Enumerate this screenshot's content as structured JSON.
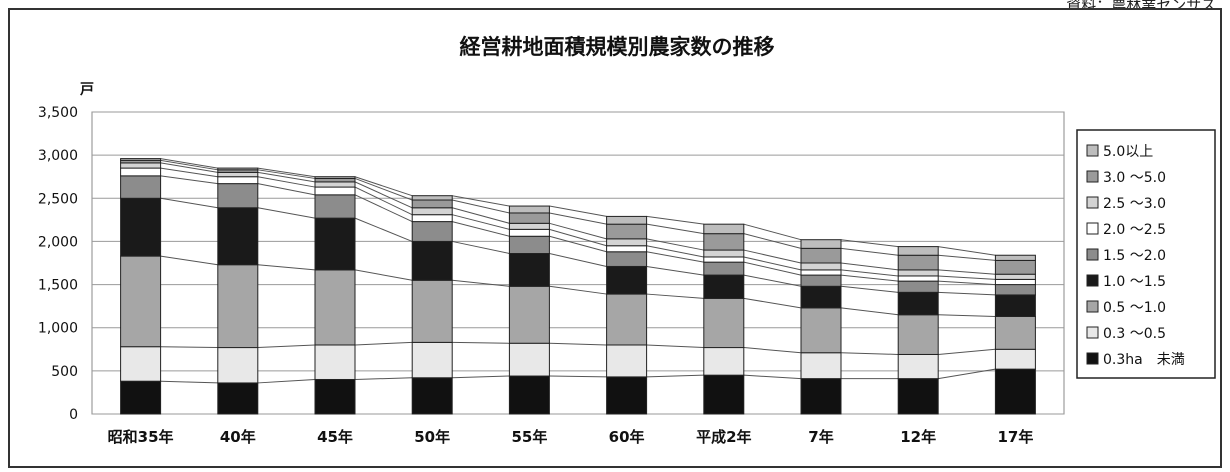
{
  "source_note": "資料：農林業センサス",
  "chart_data": {
    "type": "bar",
    "stacked": true,
    "title": "経営耕地面積規模別農家数の推移",
    "y_unit_label": "戸",
    "ylim": [
      0,
      3500
    ],
    "yticks": [
      0,
      500,
      1000,
      1500,
      2000,
      2500,
      3000,
      3500
    ],
    "ytick_labels": [
      "0",
      "500",
      "1,000",
      "1,500",
      "2,000",
      "2,500",
      "3,000",
      "3,500"
    ],
    "grid": true,
    "legend_position": "right",
    "categories": [
      "昭和35年",
      "40年",
      "45年",
      "50年",
      "55年",
      "60年",
      "平成2年",
      "7年",
      "12年",
      "17年"
    ],
    "series": [
      {
        "name": "0.3ha　未満",
        "color": "#111111",
        "values": [
          380,
          360,
          400,
          420,
          440,
          430,
          450,
          410,
          410,
          520
        ]
      },
      {
        "name": "0.3 ～0.5",
        "color": "#e8e8e8",
        "values": [
          400,
          410,
          400,
          410,
          380,
          370,
          320,
          300,
          280,
          230
        ]
      },
      {
        "name": "0.5 ～1.0",
        "color": "#a6a6a6",
        "values": [
          1050,
          960,
          870,
          720,
          660,
          590,
          570,
          520,
          460,
          380
        ]
      },
      {
        "name": "1.0 ～1.5",
        "color": "#1a1a1a",
        "values": [
          670,
          660,
          600,
          450,
          380,
          320,
          270,
          250,
          260,
          250
        ]
      },
      {
        "name": "1.5 ～2.0",
        "color": "#8c8c8c",
        "values": [
          260,
          280,
          270,
          230,
          200,
          170,
          150,
          130,
          130,
          120
        ]
      },
      {
        "name": "2.0 ～2.5",
        "color": "#ffffff",
        "values": [
          90,
          80,
          90,
          80,
          80,
          70,
          60,
          60,
          60,
          60
        ]
      },
      {
        "name": "2.5 ～3.0",
        "color": "#d4d4d4",
        "values": [
          60,
          50,
          60,
          80,
          70,
          80,
          80,
          80,
          70,
          60
        ]
      },
      {
        "name": "3.0 ～5.0",
        "color": "#9a9a9a",
        "values": [
          30,
          30,
          40,
          90,
          120,
          170,
          190,
          170,
          170,
          160
        ]
      },
      {
        "name": "5.0以上",
        "color": "#bdbdbd",
        "values": [
          20,
          20,
          20,
          50,
          80,
          90,
          110,
          100,
          100,
          60
        ]
      }
    ]
  }
}
